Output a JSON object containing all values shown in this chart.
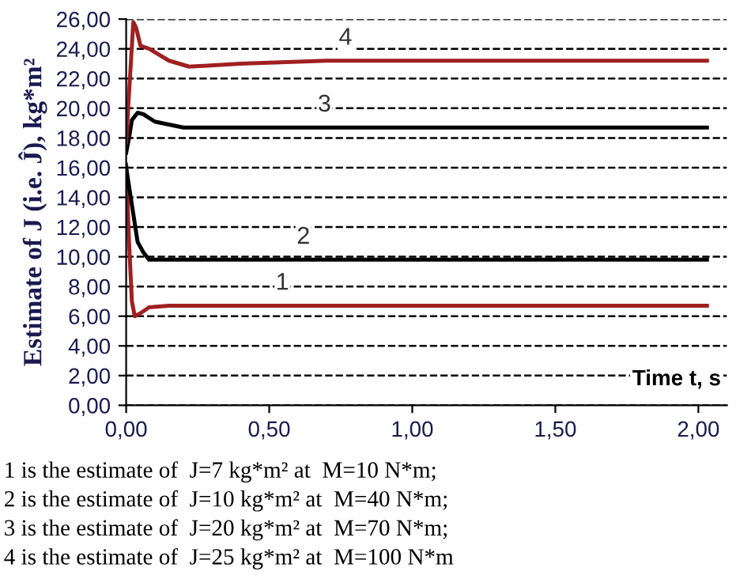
{
  "chart_data": {
    "type": "line",
    "ylabel": "Estimate of J (i.e. Ĵ), kg*m²",
    "xlabel": "Time t, s",
    "xlim": [
      0,
      2.1
    ],
    "ylim": [
      0,
      26
    ],
    "xticks": [
      {
        "value": 0,
        "label": "0,00"
      },
      {
        "value": 0.5,
        "label": "0,50"
      },
      {
        "value": 1,
        "label": "1,00"
      },
      {
        "value": 1.5,
        "label": "1,50"
      },
      {
        "value": 2,
        "label": "2,00"
      }
    ],
    "yticks": [
      {
        "value": 0,
        "label": "0,00"
      },
      {
        "value": 2,
        "label": "2,00"
      },
      {
        "value": 4,
        "label": "4,00"
      },
      {
        "value": 6,
        "label": "6,00"
      },
      {
        "value": 8,
        "label": "8,00"
      },
      {
        "value": 10,
        "label": "10,00"
      },
      {
        "value": 12,
        "label": "12,00"
      },
      {
        "value": 14,
        "label": "14,00"
      },
      {
        "value": 16,
        "label": "16,00"
      },
      {
        "value": 18,
        "label": "18,00"
      },
      {
        "value": 20,
        "label": "20,00"
      },
      {
        "value": 22,
        "label": "22,00"
      },
      {
        "value": 24,
        "label": "24,00"
      },
      {
        "value": 26,
        "label": "26,00"
      }
    ],
    "grid": "y",
    "line_style": "solid",
    "marker": "none",
    "series": [
      {
        "name": "1",
        "color": "#a02020",
        "x": [
          0,
          0.01,
          0.02,
          0.03,
          0.05,
          0.08,
          0.15,
          0.5,
          1,
          2.03
        ],
        "values": [
          16.2,
          11,
          7,
          6.0,
          6.2,
          6.6,
          6.7,
          6.7,
          6.7,
          6.7
        ]
      },
      {
        "name": "2",
        "color": "#000000",
        "x": [
          0,
          0.02,
          0.04,
          0.06,
          0.08,
          0.1,
          0.2,
          0.5,
          1,
          2.03
        ],
        "values": [
          16.0,
          13.5,
          11,
          10.3,
          9.8,
          9.8,
          9.8,
          9.8,
          9.8,
          9.8
        ]
      },
      {
        "name": "3",
        "color": "#000000",
        "x": [
          0,
          0.01,
          0.02,
          0.04,
          0.06,
          0.1,
          0.2,
          0.4,
          1,
          2.03
        ],
        "values": [
          17.0,
          18,
          19.2,
          19.7,
          19.6,
          19.1,
          18.7,
          18.7,
          18.7,
          18.7
        ]
      },
      {
        "name": "4",
        "color": "#a02020",
        "x": [
          0,
          0.01,
          0.025,
          0.035,
          0.05,
          0.08,
          0.15,
          0.22,
          0.4,
          0.7,
          1,
          2.03
        ],
        "values": [
          17.7,
          21,
          25.8,
          25.4,
          24.2,
          24.0,
          23.2,
          22.8,
          23.0,
          23.2,
          23.2,
          23.2
        ]
      }
    ],
    "annotations": [
      "1 is the estimate of  J=7 kg*m² at  M=10 N*m;",
      "2 is the estimate of  J=10 kg*m² at  M=40 N*m;",
      "3 is the estimate of  J=20 kg*m² at  M=70 N*m;",
      "4 is the estimate of  J=25 kg*m² at  M=100 N*m"
    ]
  }
}
